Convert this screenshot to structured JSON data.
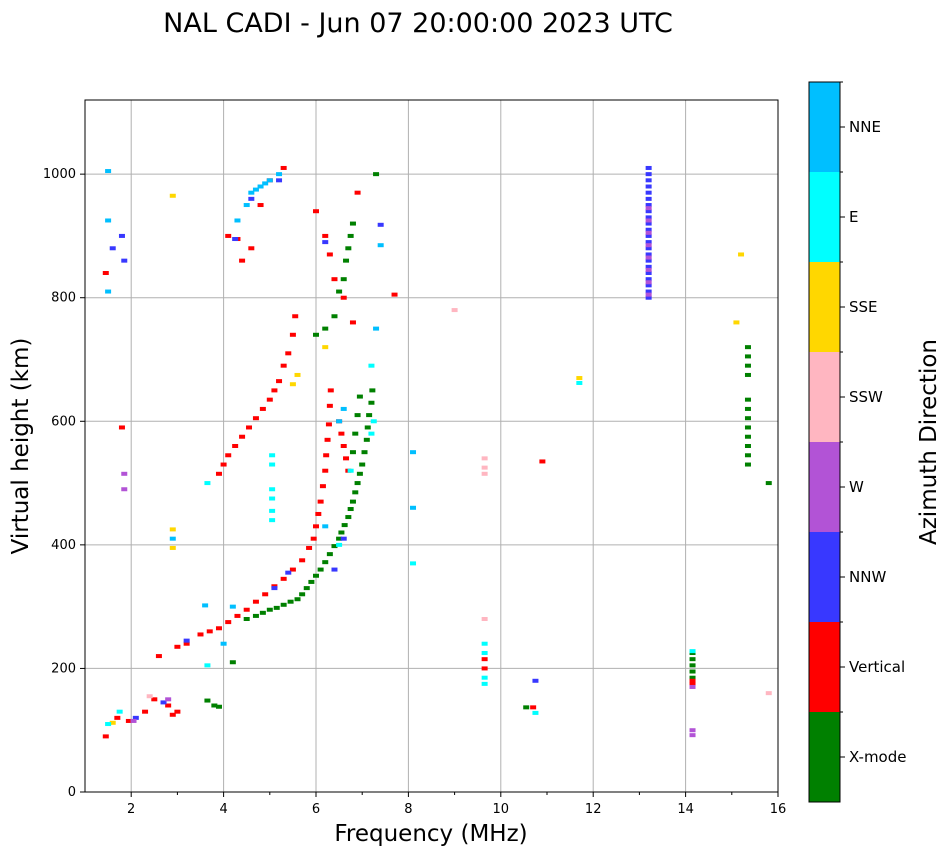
{
  "chart_data": {
    "type": "scatter",
    "title": "NAL CADI - Jun 07 20:00:00 2023 UTC",
    "xlabel": "Frequency (MHz)",
    "ylabel": "Virtual height (km)",
    "xlim": [
      1,
      16
    ],
    "ylim": [
      0,
      1120
    ],
    "xticks": [
      2,
      4,
      6,
      8,
      10,
      12,
      14,
      16
    ],
    "yticks": [
      0,
      200,
      400,
      600,
      800,
      1000
    ],
    "grid": true,
    "colorbar": {
      "label": "Azimuth Direction",
      "categories": [
        "X-mode",
        "Vertical",
        "NNW",
        "W",
        "SSW",
        "SSE",
        "E",
        "NNE"
      ],
      "colors": [
        "#008000",
        "#ff0000",
        "#3838ff",
        "#b253d6",
        "#ffb6c1",
        "#ffd700",
        "#00ffff",
        "#00bfff"
      ]
    },
    "series": [
      {
        "name": "X-mode",
        "color": "#008000",
        "points": [
          [
            3.65,
            148
          ],
          [
            3.8,
            140
          ],
          [
            3.9,
            138
          ],
          [
            4.2,
            210
          ],
          [
            4.5,
            280
          ],
          [
            4.7,
            285
          ],
          [
            4.85,
            290
          ],
          [
            5.0,
            295
          ],
          [
            5.15,
            298
          ],
          [
            5.3,
            303
          ],
          [
            5.45,
            308
          ],
          [
            5.6,
            312
          ],
          [
            5.7,
            320
          ],
          [
            5.8,
            330
          ],
          [
            5.9,
            340
          ],
          [
            6.0,
            350
          ],
          [
            6.1,
            360
          ],
          [
            6.2,
            372
          ],
          [
            6.3,
            385
          ],
          [
            6.4,
            398
          ],
          [
            6.5,
            410
          ],
          [
            6.55,
            420
          ],
          [
            6.62,
            432
          ],
          [
            6.7,
            445
          ],
          [
            6.75,
            458
          ],
          [
            6.8,
            470
          ],
          [
            6.85,
            485
          ],
          [
            6.9,
            500
          ],
          [
            6.95,
            515
          ],
          [
            7.0,
            530
          ],
          [
            7.05,
            550
          ],
          [
            7.1,
            570
          ],
          [
            7.12,
            590
          ],
          [
            7.15,
            610
          ],
          [
            7.2,
            630
          ],
          [
            7.22,
            650
          ],
          [
            6.8,
            550
          ],
          [
            6.85,
            580
          ],
          [
            6.9,
            610
          ],
          [
            6.95,
            640
          ],
          [
            6.0,
            740
          ],
          [
            6.2,
            750
          ],
          [
            6.4,
            770
          ],
          [
            6.5,
            810
          ],
          [
            6.6,
            830
          ],
          [
            6.65,
            860
          ],
          [
            6.7,
            880
          ],
          [
            6.75,
            900
          ],
          [
            6.8,
            920
          ],
          [
            7.3,
            1000
          ],
          [
            10.55,
            137
          ],
          [
            14.15,
            225
          ],
          [
            14.15,
            215
          ],
          [
            14.15,
            205
          ],
          [
            14.15,
            195
          ],
          [
            14.15,
            185
          ],
          [
            15.35,
            720
          ],
          [
            15.35,
            705
          ],
          [
            15.35,
            690
          ],
          [
            15.35,
            675
          ],
          [
            15.35,
            635
          ],
          [
            15.35,
            620
          ],
          [
            15.35,
            605
          ],
          [
            15.35,
            590
          ],
          [
            15.35,
            575
          ],
          [
            15.35,
            560
          ],
          [
            15.35,
            545
          ],
          [
            15.35,
            530
          ],
          [
            15.8,
            500
          ]
        ]
      },
      {
        "name": "Vertical",
        "color": "#ff0000",
        "points": [
          [
            1.45,
            90
          ],
          [
            1.7,
            120
          ],
          [
            1.95,
            115
          ],
          [
            2.3,
            130
          ],
          [
            2.5,
            150
          ],
          [
            2.8,
            140
          ],
          [
            2.9,
            125
          ],
          [
            3.0,
            130
          ],
          [
            2.6,
            220
          ],
          [
            3.0,
            235
          ],
          [
            3.2,
            240
          ],
          [
            3.5,
            255
          ],
          [
            3.7,
            260
          ],
          [
            3.9,
            265
          ],
          [
            4.1,
            275
          ],
          [
            4.3,
            285
          ],
          [
            4.5,
            295
          ],
          [
            4.7,
            308
          ],
          [
            4.9,
            320
          ],
          [
            5.1,
            333
          ],
          [
            5.3,
            345
          ],
          [
            5.5,
            360
          ],
          [
            5.7,
            375
          ],
          [
            5.85,
            395
          ],
          [
            5.95,
            410
          ],
          [
            6.0,
            430
          ],
          [
            6.05,
            450
          ],
          [
            6.1,
            470
          ],
          [
            6.15,
            495
          ],
          [
            6.2,
            520
          ],
          [
            6.22,
            545
          ],
          [
            6.25,
            570
          ],
          [
            6.28,
            595
          ],
          [
            6.3,
            625
          ],
          [
            6.32,
            650
          ],
          [
            6.5,
            600
          ],
          [
            6.55,
            580
          ],
          [
            6.6,
            560
          ],
          [
            6.65,
            540
          ],
          [
            6.7,
            520
          ],
          [
            3.9,
            515
          ],
          [
            4.0,
            530
          ],
          [
            4.1,
            545
          ],
          [
            4.25,
            560
          ],
          [
            4.4,
            575
          ],
          [
            4.55,
            590
          ],
          [
            4.7,
            605
          ],
          [
            4.85,
            620
          ],
          [
            5.0,
            635
          ],
          [
            5.1,
            650
          ],
          [
            5.2,
            665
          ],
          [
            5.3,
            690
          ],
          [
            5.4,
            710
          ],
          [
            5.5,
            740
          ],
          [
            5.55,
            770
          ],
          [
            4.1,
            900
          ],
          [
            4.3,
            895
          ],
          [
            4.4,
            860
          ],
          [
            4.6,
            880
          ],
          [
            4.8,
            950
          ],
          [
            5.0,
            990
          ],
          [
            5.3,
            1010
          ],
          [
            6.0,
            940
          ],
          [
            6.2,
            900
          ],
          [
            6.3,
            870
          ],
          [
            6.4,
            830
          ],
          [
            6.6,
            800
          ],
          [
            6.8,
            760
          ],
          [
            6.9,
            970
          ],
          [
            7.7,
            805
          ],
          [
            9.65,
            215
          ],
          [
            9.65,
            200
          ],
          [
            10.7,
            137
          ],
          [
            10.9,
            535
          ],
          [
            14.15,
            180
          ],
          [
            14.15,
            175
          ],
          [
            1.45,
            840
          ],
          [
            1.8,
            590
          ]
        ]
      },
      {
        "name": "NNW",
        "color": "#3838ff",
        "points": [
          [
            1.6,
            880
          ],
          [
            1.8,
            900
          ],
          [
            1.85,
            860
          ],
          [
            4.25,
            895
          ],
          [
            4.6,
            960
          ],
          [
            5.2,
            990
          ],
          [
            6.2,
            890
          ],
          [
            7.4,
            918
          ],
          [
            10.75,
            180
          ],
          [
            2.1,
            120
          ],
          [
            2.7,
            145
          ],
          [
            3.2,
            245
          ],
          [
            6.4,
            360
          ],
          [
            6.6,
            410
          ],
          [
            5.1,
            330
          ],
          [
            5.4,
            355
          ],
          [
            13.2,
            1010
          ],
          [
            13.2,
            1000
          ],
          [
            13.2,
            990
          ],
          [
            13.2,
            980
          ],
          [
            13.2,
            970
          ],
          [
            13.2,
            960
          ],
          [
            13.2,
            950
          ],
          [
            13.2,
            940
          ],
          [
            13.2,
            930
          ],
          [
            13.2,
            920
          ],
          [
            13.2,
            910
          ],
          [
            13.2,
            900
          ],
          [
            13.2,
            890
          ],
          [
            13.2,
            880
          ],
          [
            13.2,
            870
          ],
          [
            13.2,
            860
          ],
          [
            13.2,
            850
          ],
          [
            13.2,
            840
          ],
          [
            13.2,
            830
          ],
          [
            13.2,
            820
          ],
          [
            13.2,
            810
          ],
          [
            13.2,
            800
          ]
        ]
      },
      {
        "name": "W",
        "color": "#b253d6",
        "points": [
          [
            1.85,
            515
          ],
          [
            1.85,
            490
          ],
          [
            2.05,
            115
          ],
          [
            2.8,
            150
          ],
          [
            13.2,
            945
          ],
          [
            13.2,
            925
          ],
          [
            13.2,
            905
          ],
          [
            13.2,
            885
          ],
          [
            13.2,
            865
          ],
          [
            13.2,
            845
          ],
          [
            13.2,
            825
          ],
          [
            13.2,
            805
          ],
          [
            14.15,
            100
          ],
          [
            14.15,
            92
          ],
          [
            14.15,
            170
          ]
        ]
      },
      {
        "name": "SSW",
        "color": "#ffb6c1",
        "points": [
          [
            2.4,
            155
          ],
          [
            9.0,
            780
          ],
          [
            9.65,
            540
          ],
          [
            9.65,
            525
          ],
          [
            9.65,
            515
          ],
          [
            9.65,
            280
          ],
          [
            15.8,
            160
          ]
        ]
      },
      {
        "name": "SSE",
        "color": "#ffd700",
        "points": [
          [
            2.9,
            965
          ],
          [
            2.9,
            425
          ],
          [
            2.9,
            395
          ],
          [
            5.6,
            675
          ],
          [
            5.5,
            660
          ],
          [
            6.2,
            720
          ],
          [
            11.7,
            670
          ],
          [
            15.2,
            870
          ],
          [
            15.1,
            760
          ],
          [
            1.6,
            112
          ]
        ]
      },
      {
        "name": "E",
        "color": "#00ffff",
        "points": [
          [
            1.5,
            110
          ],
          [
            1.75,
            130
          ],
          [
            5.05,
            545
          ],
          [
            5.05,
            530
          ],
          [
            5.05,
            490
          ],
          [
            5.05,
            475
          ],
          [
            5.05,
            455
          ],
          [
            5.05,
            440
          ],
          [
            3.65,
            500
          ],
          [
            3.65,
            205
          ],
          [
            6.75,
            520
          ],
          [
            7.2,
            580
          ],
          [
            7.25,
            600
          ],
          [
            7.2,
            690
          ],
          [
            8.1,
            370
          ],
          [
            11.7,
            662
          ],
          [
            9.65,
            240
          ],
          [
            9.65,
            225
          ],
          [
            9.65,
            185
          ],
          [
            9.65,
            175
          ],
          [
            10.75,
            128
          ],
          [
            14.15,
            228
          ],
          [
            6.5,
            400
          ]
        ]
      },
      {
        "name": "NNE",
        "color": "#00bfff",
        "points": [
          [
            1.5,
            1005
          ],
          [
            1.5,
            925
          ],
          [
            1.5,
            810
          ],
          [
            3.6,
            302
          ],
          [
            4.0,
            240
          ],
          [
            4.2,
            300
          ],
          [
            4.3,
            925
          ],
          [
            4.5,
            950
          ],
          [
            4.6,
            970
          ],
          [
            4.7,
            975
          ],
          [
            4.8,
            980
          ],
          [
            4.9,
            985
          ],
          [
            5.0,
            990
          ],
          [
            5.2,
            1000
          ],
          [
            6.5,
            600
          ],
          [
            6.6,
            620
          ],
          [
            6.2,
            430
          ],
          [
            7.4,
            885
          ],
          [
            8.1,
            550
          ],
          [
            8.1,
            460
          ],
          [
            2.9,
            410
          ],
          [
            7.3,
            750
          ]
        ]
      }
    ]
  }
}
